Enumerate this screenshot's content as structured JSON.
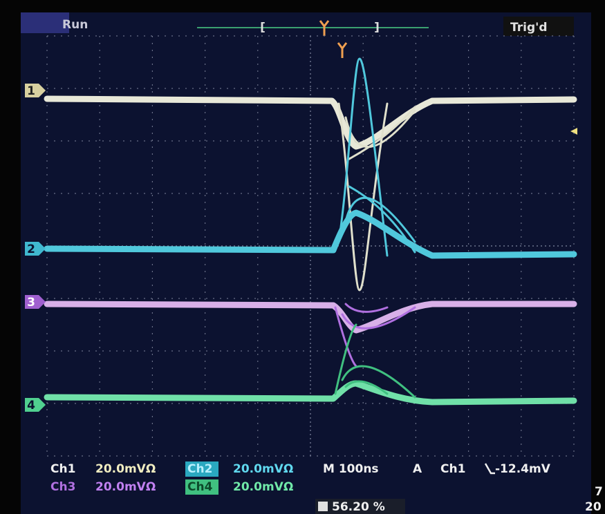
{
  "status": {
    "run": "Run",
    "trigger_state": "Trig'd"
  },
  "channel_markers": [
    "1",
    "2",
    "3",
    "4"
  ],
  "readouts": {
    "row1": {
      "ch1_label": "Ch1",
      "ch1_scale": "20.0mVΩ",
      "ch2_label": "Ch2",
      "ch2_scale": "20.0mVΩ",
      "timebase": "M 100ns",
      "trigger_mode": "A",
      "trigger_source": "Ch1",
      "trigger_level": "-12.4mV"
    },
    "row2": {
      "ch3_label": "Ch3",
      "ch3_scale": "20.0mVΩ",
      "ch4_label": "Ch4",
      "ch4_scale": "20.0mVΩ"
    },
    "row3": {
      "trigger_position": "56.20 %"
    },
    "corner": {
      "top": "7",
      "bottom": "20"
    }
  }
}
